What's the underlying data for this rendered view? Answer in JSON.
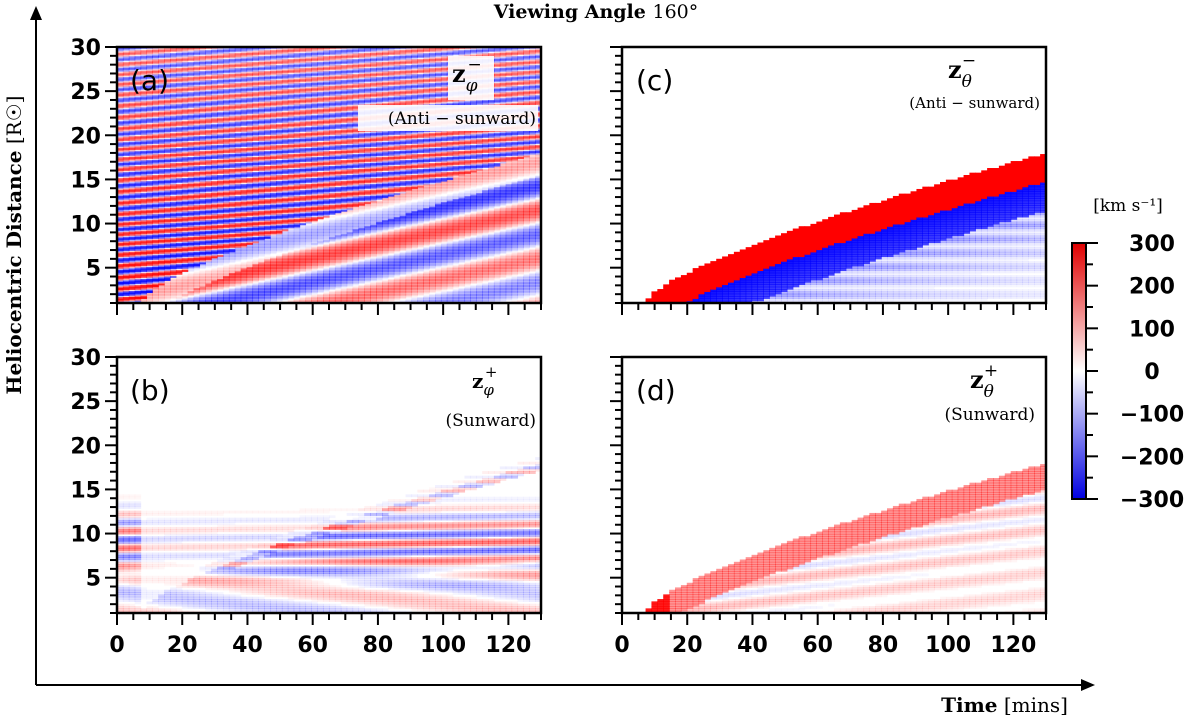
{
  "figure": {
    "title_prefix": "Viewing Angle",
    "title_angle": "160°",
    "ylabel_main": "Heliocentric Distance",
    "ylabel_unit": "[R☉]",
    "xlabel_main": "Time",
    "xlabel_unit": "[mins]",
    "cbar_unit": "[km s⁻¹]"
  },
  "panels": [
    {
      "id": "a",
      "letter": "(a)",
      "symbol": "z",
      "sub": "φ",
      "sign": "−",
      "note": "(Anti − sunward)"
    },
    {
      "id": "b",
      "letter": "(b)",
      "symbol": "z",
      "sub": "φ",
      "sign": "+",
      "note": "(Sunward)"
    },
    {
      "id": "c",
      "letter": "(c)",
      "symbol": "z",
      "sub": "θ",
      "sign": "−",
      "note": "(Anti − sunward)"
    },
    {
      "id": "d",
      "letter": "(d)",
      "symbol": "z",
      "sub": "θ",
      "sign": "+",
      "note": "(Sunward)"
    }
  ],
  "chart_data": {
    "type": "heatmap",
    "title": "Viewing Angle 160°",
    "xlabel": "Time [mins]",
    "ylabel": "Heliocentric Distance [R☉]",
    "xlim": [
      0,
      130
    ],
    "ylim": [
      1,
      30
    ],
    "x_ticks": [
      0,
      20,
      40,
      60,
      80,
      100,
      120
    ],
    "y_ticks": [
      5,
      10,
      15,
      20,
      25,
      30
    ],
    "colorbar": {
      "label": "[km s⁻¹]",
      "range": [
        -300,
        300
      ],
      "ticks": [
        300,
        200,
        100,
        0,
        -100,
        -200,
        -300
      ],
      "tick_labels": [
        "300",
        "200",
        "100",
        "0",
        "−100",
        "−200",
        "−300"
      ],
      "colors": {
        "negative": "#0000ff",
        "zero": "#ffffff",
        "positive": "#ff0000"
      }
    },
    "front_curve": {
      "t_start": 8,
      "r_start": 1.5,
      "t_end": 130,
      "r_end": 18
    },
    "panels": [
      "(a)",
      "(b)",
      "(c)",
      "(d)"
    ]
  }
}
